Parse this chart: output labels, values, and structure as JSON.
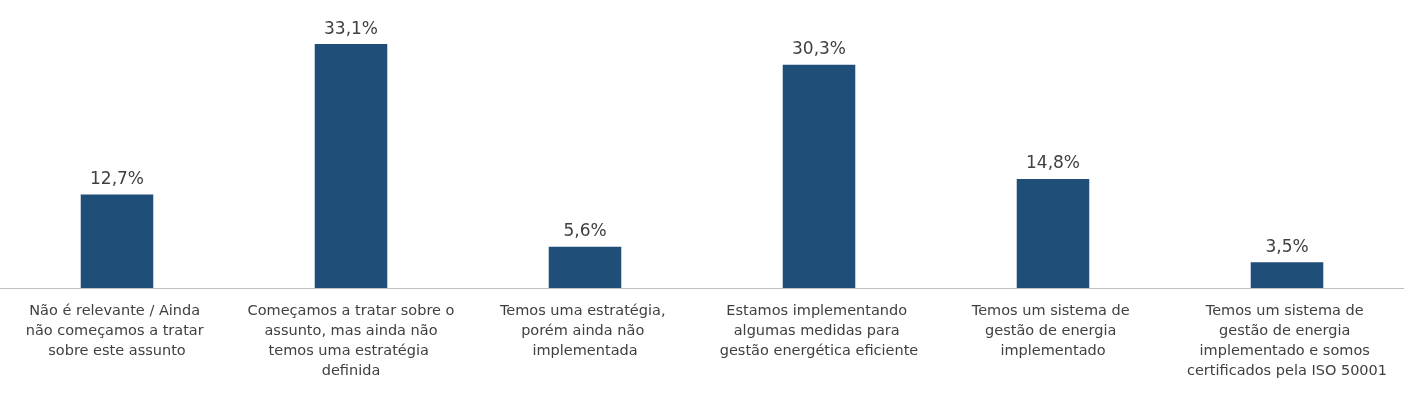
{
  "chart_data": {
    "type": "bar",
    "categories": [
      "Não é relevante / Ainda não começamos a tratar sobre este assunto",
      "Começamos a tratar sobre o assunto, mas ainda não temos uma estratégia definida",
      "Temos uma estratégia, porém ainda não implementada",
      "Estamos implementando algumas medidas para gestão energética eficiente",
      "Temos um sistema de gestão de energia implementado",
      "Temos um sistema de gestão de energia implementado e somos certificados pela ISO 50001"
    ],
    "values": [
      12.7,
      33.1,
      5.6,
      30.3,
      14.8,
      3.5
    ],
    "value_labels": [
      "12,7%",
      "33,1%",
      "5,6%",
      "30,3%",
      "14,8%",
      "3,5%"
    ],
    "color": "#1f4e79"
  }
}
